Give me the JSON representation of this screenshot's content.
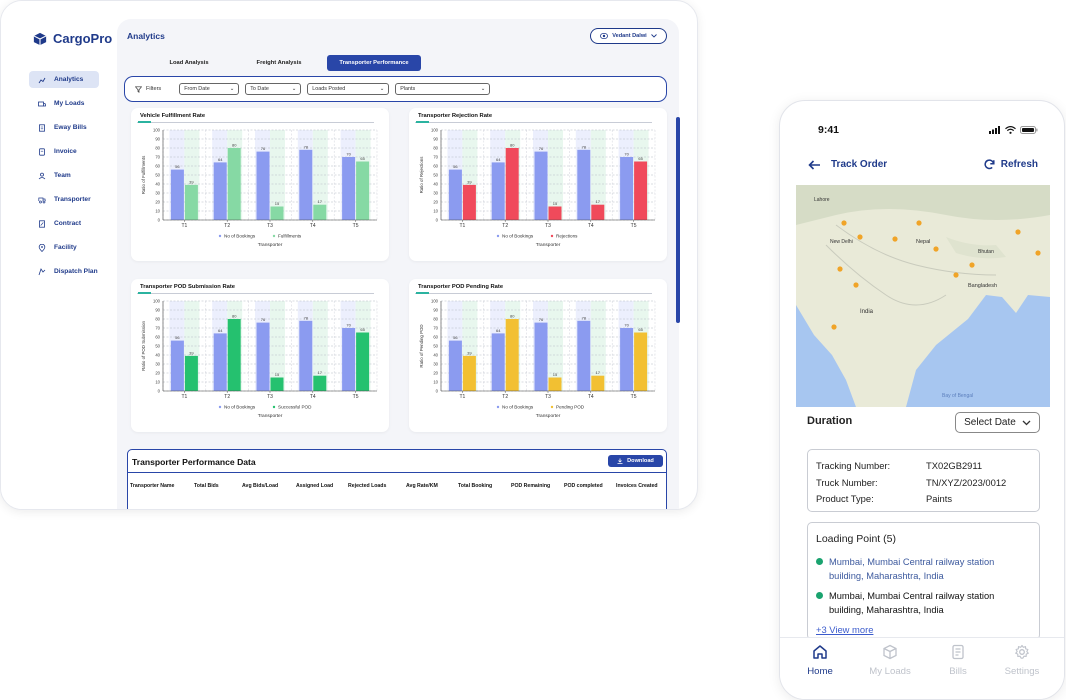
{
  "tablet": {
    "brand": "CargoPro",
    "page_title": "Analytics",
    "user": "Vedant Dalwi",
    "nav": [
      {
        "label": "Analytics",
        "icon": "analytics-icon",
        "active": true
      },
      {
        "label": "My Loads",
        "icon": "truck-icon"
      },
      {
        "label": "Eway Bills",
        "icon": "bill-icon"
      },
      {
        "label": "Invoice",
        "icon": "invoice-icon"
      },
      {
        "label": "Team",
        "icon": "team-icon"
      },
      {
        "label": "Transporter",
        "icon": "transporter-icon"
      },
      {
        "label": "Contract",
        "icon": "contract-icon"
      },
      {
        "label": "Facility",
        "icon": "facility-icon"
      },
      {
        "label": "Dispatch Plan",
        "icon": "dispatch-icon"
      }
    ],
    "tabs": [
      "Load Analysis",
      "Freight Analysis",
      "Transporter Performance"
    ],
    "filters": {
      "label": "Filters",
      "from": "From Date",
      "to": "To Date",
      "loads": "Loads Posted",
      "plants": "Plants"
    },
    "data_panel": {
      "title": "Transporter Performance Data",
      "download": "Download",
      "columns": [
        "Transporter Name",
        "Total Bids",
        "Avg Bids/Load",
        "Assigned Load",
        "Rejected Loads",
        "Avg Rate/KM",
        "Total Booking",
        "POD Remaining",
        "POD completed",
        "Invoices Created"
      ]
    },
    "colors": {
      "accent": "#2946a8",
      "bookings": "#8b9bf0"
    }
  },
  "chart_data": [
    {
      "type": "bar",
      "title": "Vehicle Fulfillment Rate",
      "xlabel": "Transporter",
      "ylabel": "Ratio of Fulfillments",
      "ylim": [
        0,
        100
      ],
      "categories": [
        "T1",
        "T2",
        "T3",
        "T4",
        "T5"
      ],
      "series": [
        {
          "name": "No of Bookings",
          "values": [
            56,
            64,
            76,
            78,
            70
          ],
          "color": "#8b9bf0"
        },
        {
          "name": "Fulfillments",
          "values": [
            39,
            80,
            15,
            17,
            65
          ],
          "color": "#86d9a4"
        }
      ],
      "yticks": [
        0,
        10,
        20,
        30,
        40,
        50,
        60,
        70,
        80,
        90,
        100
      ]
    },
    {
      "type": "bar",
      "title": "Transporter Rejection  Rate",
      "xlabel": "Transporter",
      "ylabel": "Ratio of Rejections",
      "ylim": [
        0,
        100
      ],
      "categories": [
        "T1",
        "T2",
        "T3",
        "T4",
        "T5"
      ],
      "series": [
        {
          "name": "No of Bookings",
          "values": [
            56,
            64,
            76,
            78,
            70
          ],
          "color": "#8b9bf0"
        },
        {
          "name": "Rejections",
          "values": [
            39,
            80,
            15,
            17,
            65
          ],
          "color": "#f04a5b"
        }
      ],
      "yticks": [
        0,
        10,
        20,
        30,
        40,
        50,
        60,
        70,
        80,
        90,
        100
      ]
    },
    {
      "type": "bar",
      "title": "Transporter POD Submission Rate",
      "xlabel": "Transporter",
      "ylabel": "Ratio of POD Submission",
      "ylim": [
        0,
        100
      ],
      "categories": [
        "T1",
        "T2",
        "T3",
        "T4",
        "T5"
      ],
      "series": [
        {
          "name": "No of Bookings",
          "values": [
            56,
            64,
            76,
            78,
            70
          ],
          "color": "#8b9bf0"
        },
        {
          "name": "Successful POD",
          "values": [
            39,
            80,
            15,
            17,
            65
          ],
          "color": "#25c16f"
        }
      ],
      "yticks": [
        0,
        10,
        20,
        30,
        40,
        50,
        60,
        70,
        80,
        90,
        100
      ]
    },
    {
      "type": "bar",
      "title": "Transporter POD Pending Rate",
      "xlabel": "Transporter",
      "ylabel": "Ratio of Pending POD",
      "ylim": [
        0,
        100
      ],
      "categories": [
        "T1",
        "T2",
        "T3",
        "T4",
        "T5"
      ],
      "series": [
        {
          "name": "No of Bookings",
          "values": [
            56,
            64,
            76,
            78,
            70
          ],
          "color": "#8b9bf0"
        },
        {
          "name": "Pending POD",
          "values": [
            39,
            80,
            15,
            17,
            65
          ],
          "color": "#f2c032"
        }
      ],
      "yticks": [
        0,
        10,
        20,
        30,
        40,
        50,
        60,
        70,
        80,
        90,
        100
      ]
    }
  ],
  "phone": {
    "time": "9:41",
    "header": "Track Order",
    "refresh": "Refresh",
    "map_labels": [
      "Lahore",
      "New Delhi",
      "Nepal",
      "Bhutan",
      "Bangladesh",
      "India",
      "Bay of Bengal"
    ],
    "duration": "Duration",
    "select_date": "Select Date",
    "details": [
      {
        "k": "Tracking Number:",
        "v": "TX02GB2911"
      },
      {
        "k": "Truck  Number:",
        "v": "TN/XYZ/2023/0012"
      },
      {
        "k": "Product Type:",
        "v": "Paints"
      }
    ],
    "loading_title": "Loading Point (5)",
    "loading_points": [
      "Mumbai, Mumbai Central railway station building, Maharashtra, India",
      "Mumbai, Mumbai Central railway  station building, Maharashtra, India"
    ],
    "view_more": "+3 View more",
    "nav": [
      "Home",
      "My Loads",
      "Bills",
      "Settings"
    ]
  }
}
